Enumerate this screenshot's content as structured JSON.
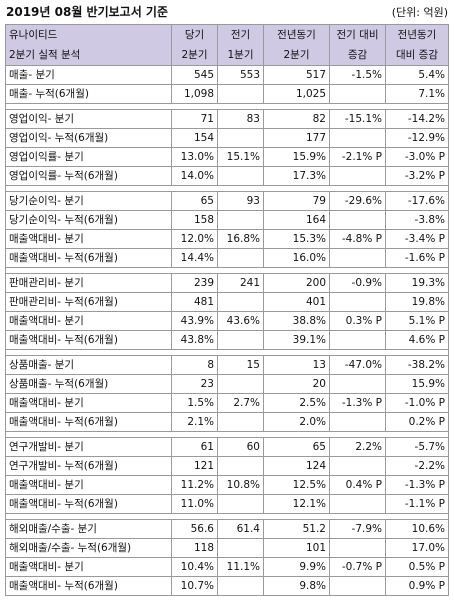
{
  "header": {
    "title": "2019년 08월 반기보고서 기준",
    "unit": "(단위: 억원)"
  },
  "table": {
    "head": {
      "company": "유나이티드",
      "subtitle": "2분기 실적 분석",
      "col1": [
        "당기",
        "2분기"
      ],
      "col2": [
        "전기",
        "1분기"
      ],
      "col3": [
        "전년동기",
        "2분기"
      ],
      "col4": [
        "전기 대비",
        "증감"
      ],
      "col5": [
        "전년동기",
        "대비 증감"
      ]
    },
    "groups": [
      {
        "rows": [
          {
            "label": "매출- 분기",
            "v1": "545",
            "v2": "553",
            "v3": "517",
            "v4": "-1.5%",
            "v5": "5.4%"
          },
          {
            "label": "매출- 누적(6개월)",
            "v1": "1,098",
            "v2": "",
            "v3": "1,025",
            "v4": "",
            "v5": "7.1%"
          }
        ]
      },
      {
        "rows": [
          {
            "label": "영업이익- 분기",
            "v1": "71",
            "v2": "83",
            "v3": "82",
            "v4": "-15.1%",
            "v5": "-14.2%"
          },
          {
            "label": "영업이익- 누적(6개월)",
            "v1": "154",
            "v2": "",
            "v3": "177",
            "v4": "",
            "v5": "-12.9%"
          },
          {
            "label": "영업이익률- 분기",
            "v1": "13.0%",
            "v2": "15.1%",
            "v3": "15.9%",
            "v4": "-2.1% P",
            "v5": "-3.0% P"
          },
          {
            "label": "영업이익률- 누적(6개월)",
            "v1": "14.0%",
            "v2": "",
            "v3": "17.3%",
            "v4": "",
            "v5": "-3.2% P"
          }
        ]
      },
      {
        "rows": [
          {
            "label": "당기순이익- 분기",
            "v1": "65",
            "v2": "93",
            "v3": "79",
            "v4": "-29.6%",
            "v5": "-17.6%"
          },
          {
            "label": "당기순이익- 누적(6개월)",
            "v1": "158",
            "v2": "",
            "v3": "164",
            "v4": "",
            "v5": "-3.8%"
          },
          {
            "label": "매출액대비- 분기",
            "v1": "12.0%",
            "v2": "16.8%",
            "v3": "15.3%",
            "v4": "-4.8% P",
            "v5": "-3.4% P"
          },
          {
            "label": "매출액대비- 누적(6개월)",
            "v1": "14.4%",
            "v2": "",
            "v3": "16.0%",
            "v4": "",
            "v5": "-1.6% P"
          }
        ]
      },
      {
        "rows": [
          {
            "label": "판매관리비- 분기",
            "v1": "239",
            "v2": "241",
            "v3": "200",
            "v4": "-0.9%",
            "v5": "19.3%"
          },
          {
            "label": "판매관리비- 누적(6개월)",
            "v1": "481",
            "v2": "",
            "v3": "401",
            "v4": "",
            "v5": "19.8%"
          },
          {
            "label": "매출액대비- 분기",
            "v1": "43.9%",
            "v2": "43.6%",
            "v3": "38.8%",
            "v4": "0.3% P",
            "v5": "5.1% P"
          },
          {
            "label": "매출액대비- 누적(6개월)",
            "v1": "43.8%",
            "v2": "",
            "v3": "39.1%",
            "v4": "",
            "v5": "4.6% P"
          }
        ]
      },
      {
        "rows": [
          {
            "label": "상품매출- 분기",
            "v1": "8",
            "v2": "15",
            "v3": "13",
            "v4": "-47.0%",
            "v5": "-38.2%"
          },
          {
            "label": "상품매출- 누적(6개월)",
            "v1": "23",
            "v2": "",
            "v3": "20",
            "v4": "",
            "v5": "15.9%"
          },
          {
            "label": "매출액대비- 분기",
            "v1": "1.5%",
            "v2": "2.7%",
            "v3": "2.5%",
            "v4": "-1.3% P",
            "v5": "-1.0% P"
          },
          {
            "label": "매출액대비- 누적(6개월)",
            "v1": "2.1%",
            "v2": "",
            "v3": "2.0%",
            "v4": "",
            "v5": "0.2% P"
          }
        ]
      },
      {
        "rows": [
          {
            "label": "연구개발비- 분기",
            "v1": "61",
            "v2": "60",
            "v3": "65",
            "v4": "2.2%",
            "v5": "-5.7%"
          },
          {
            "label": "연구개발비- 누적(6개월)",
            "v1": "121",
            "v2": "",
            "v3": "124",
            "v4": "",
            "v5": "-2.2%"
          },
          {
            "label": "매출액대비- 분기",
            "v1": "11.2%",
            "v2": "10.8%",
            "v3": "12.5%",
            "v4": "0.4% P",
            "v5": "-1.3% P"
          },
          {
            "label": "매출액대비- 누적(6개월)",
            "v1": "11.0%",
            "v2": "",
            "v3": "12.1%",
            "v4": "",
            "v5": "-1.1% P"
          }
        ]
      },
      {
        "rows": [
          {
            "label": "해외매출/수출- 분기",
            "v1": "56.6",
            "v2": "61.4",
            "v3": "51.2",
            "v4": "-7.9%",
            "v5": "10.6%"
          },
          {
            "label": "해외매출/수출- 누적(6개월)",
            "v1": "118",
            "v2": "",
            "v3": "101",
            "v4": "",
            "v5": "17.0%"
          },
          {
            "label": "매출액대비- 분기",
            "v1": "10.4%",
            "v2": "11.1%",
            "v3": "9.9%",
            "v4": "-0.7% P",
            "v5": "0.5% P"
          },
          {
            "label": "매출액대비- 누적(6개월)",
            "v1": "10.7%",
            "v2": "",
            "v3": "9.8%",
            "v4": "",
            "v5": "0.9% P"
          }
        ]
      }
    ]
  }
}
